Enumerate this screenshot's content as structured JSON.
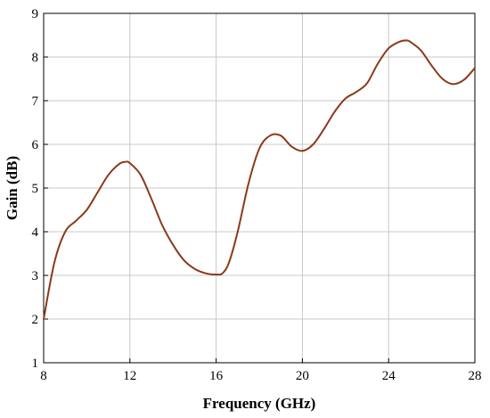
{
  "chart_data": {
    "type": "line",
    "title": "",
    "xlabel": "Frequency (GHz)",
    "ylabel": "Gain (dB)",
    "xlim": [
      8,
      28
    ],
    "ylim": [
      1,
      9
    ],
    "xticks": [
      8,
      12,
      16,
      20,
      24,
      28
    ],
    "yticks": [
      1,
      2,
      3,
      4,
      5,
      6,
      7,
      8,
      9
    ],
    "xtick_labels": [
      "8",
      "12",
      "16",
      "20",
      "24",
      "28"
    ],
    "ytick_labels": [
      "1",
      "2",
      "3",
      "4",
      "5",
      "6",
      "7",
      "8",
      "9"
    ],
    "grid": true,
    "legend": "none",
    "series": [
      {
        "color": "#8b3a1a",
        "x": [
          8,
          8.5,
          9,
          9.5,
          10,
          10.5,
          11,
          11.5,
          11.8,
          12,
          12.5,
          13,
          13.5,
          14,
          14.5,
          15,
          15.5,
          16,
          16.3,
          16.6,
          17,
          17.5,
          18,
          18.5,
          19,
          19.5,
          20,
          20.5,
          21,
          21.5,
          22,
          22.5,
          23,
          23.5,
          24,
          24.5,
          24.8,
          25,
          25.5,
          26,
          26.5,
          27,
          27.5,
          28
        ],
        "y": [
          2.0,
          3.3,
          4.0,
          4.25,
          4.5,
          4.9,
          5.3,
          5.55,
          5.6,
          5.57,
          5.3,
          4.75,
          4.15,
          3.7,
          3.35,
          3.15,
          3.05,
          3.02,
          3.05,
          3.3,
          4.0,
          5.1,
          5.9,
          6.2,
          6.2,
          5.95,
          5.85,
          6.0,
          6.35,
          6.75,
          7.05,
          7.2,
          7.4,
          7.85,
          8.2,
          8.35,
          8.38,
          8.35,
          8.15,
          7.8,
          7.5,
          7.38,
          7.48,
          7.75
        ]
      }
    ]
  }
}
